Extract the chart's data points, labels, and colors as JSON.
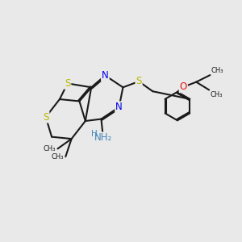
{
  "bg_color": "#e9e9e9",
  "bond_color": "#1a1a1a",
  "S_color": "#b8b800",
  "N_color": "#0000ee",
  "O_color": "#ee1111",
  "NH2_color": "#4488bb",
  "lw": 1.5,
  "dbo": 0.055,
  "figsize": [
    3.0,
    3.0
  ],
  "dpi": 100,
  "xlim": [
    0,
    12
  ],
  "ylim": [
    0,
    12
  ]
}
